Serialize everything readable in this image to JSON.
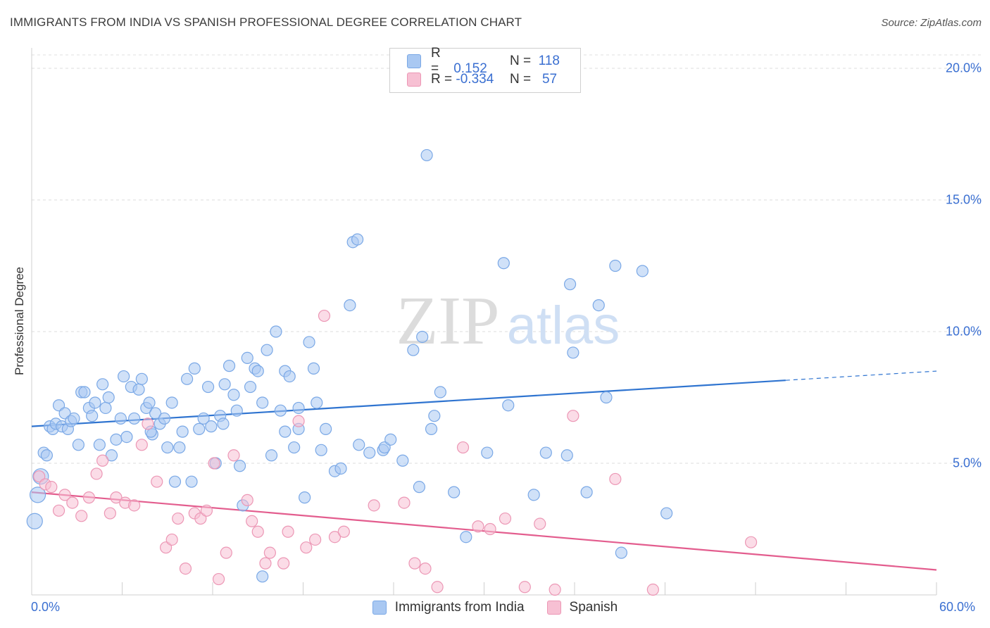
{
  "header": {
    "title": "IMMIGRANTS FROM INDIA VS SPANISH PROFESSIONAL DEGREE CORRELATION CHART",
    "source": "Source: ZipAtlas.com"
  },
  "watermark": {
    "zip": "ZIP",
    "atlas": "atlas"
  },
  "legend_top": [
    {
      "r_label": "R =",
      "r_value": "0.152",
      "n_label": "N =",
      "n_value": "118",
      "color": "#a9c8f2",
      "border": "#7aa8e6"
    },
    {
      "r_label": "R =",
      "r_value": "-0.334",
      "n_label": "N =",
      "n_value": "57",
      "color": "#f7c0d3",
      "border": "#ec97b5"
    }
  ],
  "legend_bottom": [
    {
      "label": "Immigrants from India",
      "color": "#a9c8f2",
      "border": "#7aa8e6"
    },
    {
      "label": "Spanish",
      "color": "#f7c0d3",
      "border": "#ec97b5"
    }
  ],
  "chart_data": {
    "type": "scatter",
    "title": "IMMIGRANTS FROM INDIA VS SPANISH PROFESSIONAL DEGREE CORRELATION CHART",
    "xlabel": "",
    "ylabel": "Professional Degree",
    "xlim": [
      0,
      60
    ],
    "ylim": [
      0,
      20
    ],
    "x_tick_labels": [
      "0.0%",
      "60.0%"
    ],
    "y_ticks": [
      5,
      10,
      15,
      20
    ],
    "y_tick_labels": [
      "5.0%",
      "10.0%",
      "15.0%",
      "20.0%"
    ],
    "grid": true,
    "legend_position": "top-center",
    "series": [
      {
        "name": "Immigrants from India",
        "color": "#7aa8e6",
        "fill": "#a9c8f2",
        "line_color": "#2f74d0",
        "trend": {
          "x0": 0,
          "y0": 6.4,
          "x1": 50,
          "y1": 8.15,
          "dash_to_x": 60,
          "dash_to_y": 8.5
        },
        "points": [
          [
            0.2,
            2.8
          ],
          [
            0.4,
            3.8
          ],
          [
            0.6,
            4.5
          ],
          [
            0.8,
            5.4
          ],
          [
            1.0,
            5.3
          ],
          [
            1.2,
            6.4
          ],
          [
            1.4,
            6.3
          ],
          [
            1.6,
            6.5
          ],
          [
            1.8,
            7.2
          ],
          [
            2.0,
            6.4
          ],
          [
            2.2,
            6.9
          ],
          [
            2.4,
            6.3
          ],
          [
            2.6,
            6.6
          ],
          [
            2.8,
            6.7
          ],
          [
            3.1,
            5.7
          ],
          [
            3.3,
            7.7
          ],
          [
            3.5,
            7.7
          ],
          [
            3.8,
            7.1
          ],
          [
            4.0,
            6.8
          ],
          [
            4.2,
            7.3
          ],
          [
            4.5,
            5.7
          ],
          [
            4.7,
            8.0
          ],
          [
            4.9,
            7.1
          ],
          [
            5.1,
            7.5
          ],
          [
            5.3,
            5.3
          ],
          [
            5.6,
            5.9
          ],
          [
            5.9,
            6.7
          ],
          [
            6.1,
            8.3
          ],
          [
            6.3,
            6.0
          ],
          [
            6.6,
            7.9
          ],
          [
            6.8,
            6.7
          ],
          [
            7.1,
            7.8
          ],
          [
            7.3,
            8.2
          ],
          [
            7.6,
            7.1
          ],
          [
            7.8,
            7.3
          ],
          [
            8.0,
            6.1
          ],
          [
            8.2,
            6.9
          ],
          [
            8.5,
            6.5
          ],
          [
            8.8,
            6.7
          ],
          [
            9.0,
            5.6
          ],
          [
            9.3,
            7.3
          ],
          [
            9.5,
            4.3
          ],
          [
            9.8,
            5.6
          ],
          [
            10.0,
            6.2
          ],
          [
            10.3,
            8.2
          ],
          [
            10.6,
            4.3
          ],
          [
            10.8,
            8.6
          ],
          [
            11.1,
            6.3
          ],
          [
            11.4,
            6.7
          ],
          [
            11.7,
            7.9
          ],
          [
            11.9,
            6.4
          ],
          [
            12.2,
            5.0
          ],
          [
            12.5,
            6.8
          ],
          [
            12.8,
            8.0
          ],
          [
            13.1,
            8.7
          ],
          [
            13.4,
            7.6
          ],
          [
            13.6,
            7.0
          ],
          [
            13.8,
            4.9
          ],
          [
            14.0,
            3.4
          ],
          [
            14.3,
            9.0
          ],
          [
            14.5,
            7.9
          ],
          [
            14.8,
            8.6
          ],
          [
            15.0,
            8.5
          ],
          [
            15.3,
            7.3
          ],
          [
            15.6,
            9.3
          ],
          [
            15.9,
            5.3
          ],
          [
            16.2,
            10.0
          ],
          [
            16.5,
            7.0
          ],
          [
            16.8,
            6.2
          ],
          [
            16.8,
            8.5
          ],
          [
            17.1,
            8.3
          ],
          [
            17.4,
            5.6
          ],
          [
            17.7,
            7.1
          ],
          [
            17.7,
            6.3
          ],
          [
            18.1,
            3.7
          ],
          [
            18.4,
            9.6
          ],
          [
            18.7,
            8.6
          ],
          [
            18.9,
            7.3
          ],
          [
            19.2,
            5.5
          ],
          [
            19.5,
            6.3
          ],
          [
            20.1,
            4.7
          ],
          [
            20.5,
            4.8
          ],
          [
            21.1,
            11.0
          ],
          [
            21.3,
            13.4
          ],
          [
            21.6,
            13.5
          ],
          [
            21.7,
            5.7
          ],
          [
            22.4,
            5.4
          ],
          [
            23.3,
            5.5
          ],
          [
            23.4,
            5.6
          ],
          [
            23.8,
            5.9
          ],
          [
            24.6,
            5.1
          ],
          [
            25.3,
            9.3
          ],
          [
            25.7,
            4.1
          ],
          [
            25.9,
            9.8
          ],
          [
            26.2,
            16.7
          ],
          [
            26.5,
            6.3
          ],
          [
            26.7,
            6.8
          ],
          [
            27.1,
            7.7
          ],
          [
            28.0,
            3.9
          ],
          [
            28.8,
            2.2
          ],
          [
            30.2,
            5.4
          ],
          [
            31.3,
            12.6
          ],
          [
            31.6,
            7.2
          ],
          [
            34.1,
            5.4
          ],
          [
            35.5,
            5.3
          ],
          [
            35.7,
            11.8
          ],
          [
            35.9,
            9.2
          ],
          [
            36.8,
            3.9
          ],
          [
            37.6,
            11.0
          ],
          [
            38.1,
            7.5
          ],
          [
            38.7,
            12.5
          ],
          [
            39.1,
            1.6
          ],
          [
            40.5,
            12.3
          ],
          [
            42.1,
            3.1
          ],
          [
            15.3,
            0.7
          ],
          [
            7.9,
            6.2
          ],
          [
            12.7,
            6.5
          ],
          [
            33.3,
            3.8
          ]
        ]
      },
      {
        "name": "Spanish",
        "color": "#ec97b5",
        "fill": "#f7c0d3",
        "line_color": "#e35d8e",
        "trend": {
          "x0": 0,
          "y0": 3.9,
          "x1": 60,
          "y1": 0.95
        },
        "points": [
          [
            0.5,
            4.5
          ],
          [
            0.9,
            4.2
          ],
          [
            1.3,
            4.1
          ],
          [
            1.8,
            3.2
          ],
          [
            2.2,
            3.8
          ],
          [
            2.7,
            3.5
          ],
          [
            3.3,
            3.0
          ],
          [
            3.8,
            3.7
          ],
          [
            4.3,
            4.6
          ],
          [
            4.7,
            5.1
          ],
          [
            5.2,
            3.1
          ],
          [
            5.6,
            3.7
          ],
          [
            6.2,
            3.5
          ],
          [
            6.8,
            3.4
          ],
          [
            7.3,
            5.7
          ],
          [
            7.7,
            6.5
          ],
          [
            8.3,
            4.3
          ],
          [
            8.9,
            1.8
          ],
          [
            9.3,
            2.1
          ],
          [
            9.7,
            2.9
          ],
          [
            10.2,
            1.0
          ],
          [
            10.8,
            3.1
          ],
          [
            11.2,
            2.9
          ],
          [
            11.6,
            3.2
          ],
          [
            12.1,
            5.0
          ],
          [
            12.4,
            0.6
          ],
          [
            12.9,
            1.6
          ],
          [
            13.4,
            5.3
          ],
          [
            14.3,
            3.6
          ],
          [
            14.6,
            2.8
          ],
          [
            15.0,
            2.4
          ],
          [
            15.5,
            1.2
          ],
          [
            15.8,
            1.6
          ],
          [
            16.7,
            1.2
          ],
          [
            17.0,
            2.4
          ],
          [
            17.7,
            6.6
          ],
          [
            18.2,
            1.8
          ],
          [
            18.8,
            2.1
          ],
          [
            19.4,
            10.6
          ],
          [
            20.1,
            2.2
          ],
          [
            20.7,
            2.4
          ],
          [
            22.7,
            3.4
          ],
          [
            24.7,
            3.5
          ],
          [
            25.4,
            1.2
          ],
          [
            26.1,
            1.0
          ],
          [
            26.9,
            0.3
          ],
          [
            28.6,
            5.6
          ],
          [
            29.6,
            2.6
          ],
          [
            30.4,
            2.5
          ],
          [
            31.4,
            2.9
          ],
          [
            32.7,
            0.3
          ],
          [
            33.7,
            2.7
          ],
          [
            34.7,
            0.2
          ],
          [
            35.9,
            6.8
          ],
          [
            38.7,
            4.4
          ],
          [
            41.2,
            0.2
          ],
          [
            47.7,
            2.0
          ]
        ]
      }
    ]
  }
}
